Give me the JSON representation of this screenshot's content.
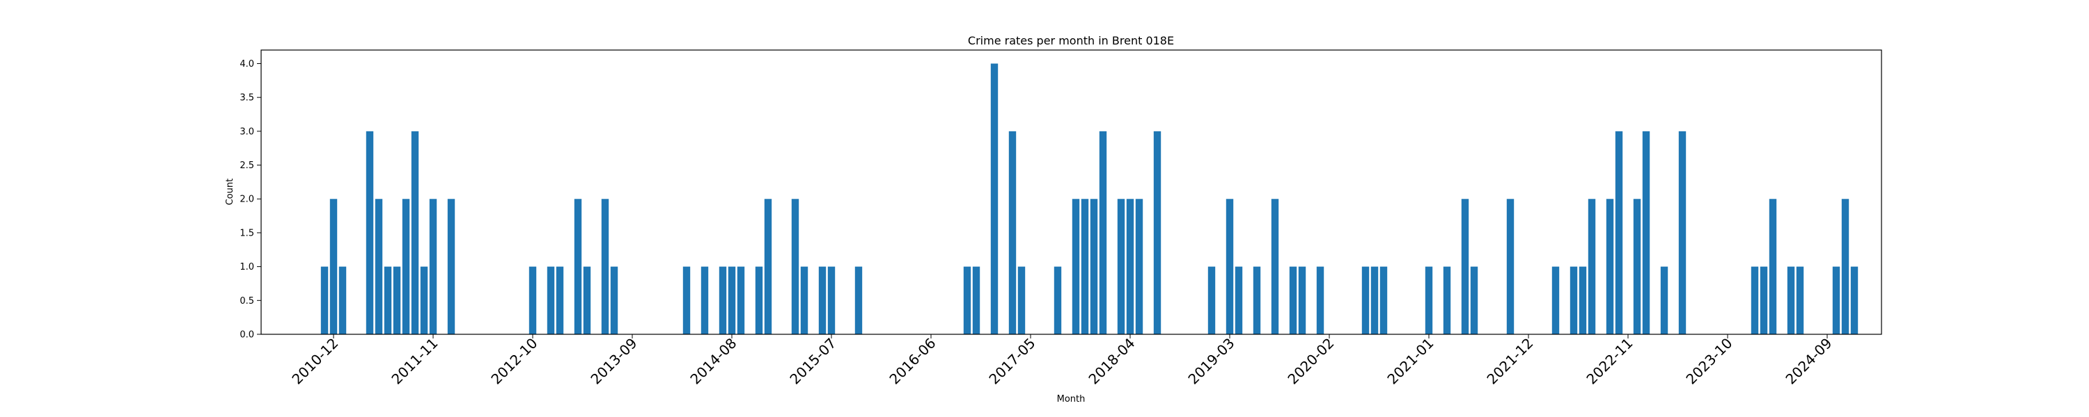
{
  "chart_data": {
    "type": "bar",
    "title": "Crime rates per month in Brent 018E",
    "xlabel": "Month",
    "ylabel": "Count",
    "ylim": [
      0,
      4.2
    ],
    "yticks": [
      0.0,
      0.5,
      1.0,
      1.5,
      2.0,
      2.5,
      3.0,
      3.5,
      4.0
    ],
    "ytick_labels": [
      "0.0",
      "0.5",
      "1.0",
      "1.5",
      "2.0",
      "2.5",
      "3.0",
      "3.5",
      "4.0"
    ],
    "xtick_labels": [
      "2010-12",
      "2011-11",
      "2012-10",
      "2013-09",
      "2014-08",
      "2015-07",
      "2016-06",
      "2017-05",
      "2018-04",
      "2019-03",
      "2020-02",
      "2021-01",
      "2021-12",
      "2022-11",
      "2023-10",
      "2024-09"
    ],
    "xlim": [
      "2010-04",
      "2025-03"
    ],
    "bar_color": "#1f77b4",
    "grid": false,
    "legend": false,
    "x": [
      "2010-11",
      "2010-12",
      "2011-01",
      "2011-04",
      "2011-05",
      "2011-06",
      "2011-07",
      "2011-08",
      "2011-09",
      "2011-10",
      "2011-11",
      "2012-01",
      "2012-10",
      "2012-12",
      "2013-01",
      "2013-03",
      "2013-04",
      "2013-06",
      "2013-07",
      "2014-03",
      "2014-05",
      "2014-07",
      "2014-08",
      "2014-09",
      "2014-11",
      "2014-12",
      "2015-03",
      "2015-04",
      "2015-06",
      "2015-07",
      "2015-10",
      "2016-10",
      "2016-11",
      "2017-01",
      "2017-03",
      "2017-04",
      "2017-08",
      "2017-10",
      "2017-11",
      "2017-12",
      "2018-01",
      "2018-03",
      "2018-04",
      "2018-05",
      "2018-07",
      "2019-01",
      "2019-03",
      "2019-04",
      "2019-06",
      "2019-08",
      "2019-10",
      "2019-11",
      "2020-01",
      "2020-06",
      "2020-07",
      "2020-08",
      "2021-01",
      "2021-03",
      "2021-05",
      "2021-06",
      "2021-10",
      "2022-03",
      "2022-05",
      "2022-06",
      "2022-07",
      "2022-09",
      "2022-10",
      "2022-12",
      "2023-01",
      "2023-03",
      "2023-05",
      "2024-01",
      "2024-02",
      "2024-03",
      "2024-05",
      "2024-06",
      "2024-10",
      "2024-11",
      "2024-12"
    ],
    "values": [
      1,
      2,
      1,
      3,
      2,
      1,
      1,
      2,
      3,
      1,
      2,
      2,
      1,
      1,
      1,
      2,
      1,
      2,
      1,
      1,
      1,
      1,
      1,
      1,
      1,
      2,
      2,
      1,
      1,
      1,
      1,
      1,
      1,
      4,
      3,
      1,
      1,
      2,
      2,
      2,
      3,
      2,
      2,
      2,
      3,
      1,
      2,
      1,
      1,
      2,
      1,
      1,
      1,
      1,
      1,
      1,
      1,
      1,
      2,
      1,
      2,
      1,
      1,
      1,
      2,
      2,
      3,
      2,
      3,
      1,
      3,
      1,
      1,
      2,
      1,
      1,
      1,
      2,
      1
    ]
  }
}
